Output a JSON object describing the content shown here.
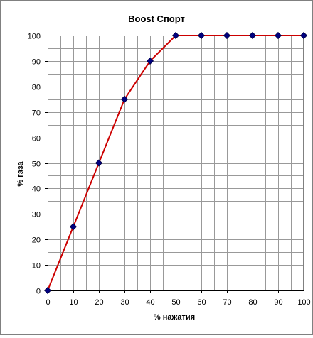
{
  "chart_data": {
    "type": "line",
    "title": "Boost Спорт",
    "xlabel": "% нажатия",
    "ylabel": "% газа",
    "xlim": [
      0,
      100
    ],
    "ylim": [
      0,
      100
    ],
    "x_ticks": [
      0,
      10,
      20,
      30,
      40,
      50,
      60,
      70,
      80,
      90,
      100
    ],
    "y_ticks": [
      0,
      10,
      20,
      30,
      40,
      50,
      60,
      70,
      80,
      90,
      100
    ],
    "x_minor_step": 5,
    "y_minor_step": 5,
    "grid": true,
    "legend": "none",
    "series": [
      {
        "x": [
          0,
          10,
          20,
          30,
          40,
          50,
          60,
          70,
          80,
          90,
          100
        ],
        "y": [
          0,
          25,
          50,
          75,
          90,
          100,
          100,
          100,
          100,
          100,
          100
        ],
        "line_color": "#cc0000",
        "marker_color": "#000080",
        "marker": "diamond"
      }
    ]
  }
}
